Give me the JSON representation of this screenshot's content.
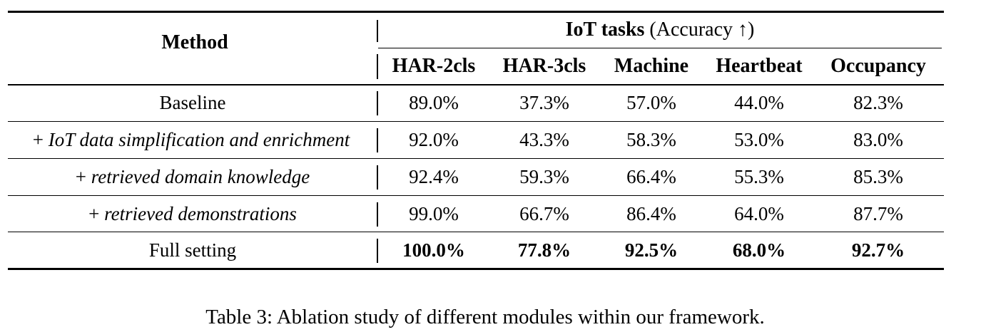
{
  "table": {
    "method_header": "Method",
    "group_header_bold": "IoT tasks",
    "group_header_rest": " (Accuracy ↑)",
    "columns": [
      "HAR-2cls",
      "HAR-3cls",
      "Machine",
      "Heartbeat",
      "Occupancy"
    ],
    "rows": [
      {
        "prefix": "",
        "method": "Baseline",
        "italic": false,
        "bold_values": false,
        "values": [
          "89.0%",
          "37.3%",
          "57.0%",
          "44.0%",
          "82.3%"
        ]
      },
      {
        "prefix": "+ ",
        "method": "IoT data simplification and enrichment",
        "italic": true,
        "bold_values": false,
        "values": [
          "92.0%",
          "43.3%",
          "58.3%",
          "53.0%",
          "83.0%"
        ]
      },
      {
        "prefix": "+ ",
        "method": "retrieved domain knowledge",
        "italic": true,
        "bold_values": false,
        "values": [
          "92.4%",
          "59.3%",
          "66.4%",
          "55.3%",
          "85.3%"
        ]
      },
      {
        "prefix": "+ ",
        "method": "retrieved demonstrations",
        "italic": true,
        "bold_values": false,
        "values": [
          "99.0%",
          "66.7%",
          "86.4%",
          "64.0%",
          "87.7%"
        ]
      },
      {
        "prefix": "",
        "method": "Full setting",
        "italic": false,
        "bold_values": true,
        "values": [
          "100.0%",
          "77.8%",
          "92.5%",
          "68.0%",
          "92.7%"
        ]
      }
    ]
  },
  "caption": "Table 3: Ablation study of different modules within our framework."
}
